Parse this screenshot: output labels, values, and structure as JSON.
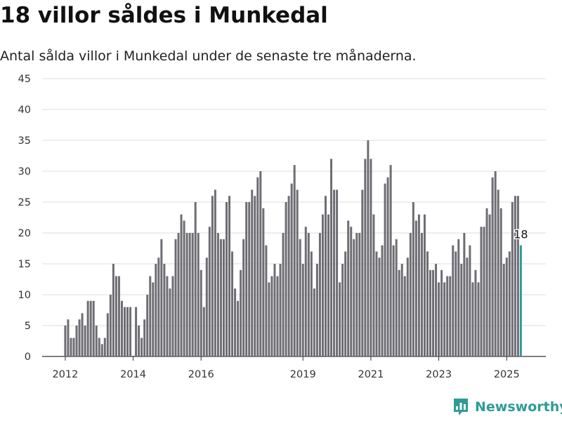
{
  "chart_data": {
    "type": "bar",
    "title": "18 villor såldes i Munkedal",
    "subtitle": "Antal sålda villor i Munkedal under de senaste tre månaderna.",
    "ylim": [
      0,
      45
    ],
    "yticks": [
      0,
      5,
      10,
      15,
      20,
      25,
      30,
      35,
      40,
      45
    ],
    "xticks": [
      "2012",
      "2014",
      "2016",
      "2019",
      "2021",
      "2023",
      "2025"
    ],
    "grid": true,
    "bar_color": "#6e6d73",
    "highlight_color": "#2e9c96",
    "highlight_label": "18",
    "series": [
      {
        "values": [
          5,
          6,
          3,
          3,
          5,
          6,
          7,
          5,
          9,
          9,
          9,
          5,
          3,
          2,
          3,
          7,
          10,
          15,
          13,
          13,
          9,
          8,
          8,
          8,
          0,
          8,
          5,
          3,
          6,
          10,
          13,
          12,
          15,
          16,
          19,
          15,
          13,
          11,
          13,
          19,
          20,
          23,
          22,
          20,
          20,
          20,
          25,
          20,
          14,
          8,
          16,
          21,
          26,
          27,
          20,
          19,
          19,
          25,
          26,
          17,
          11,
          9,
          14,
          19,
          25,
          25,
          27,
          26,
          29,
          30,
          24,
          18,
          12,
          13,
          15,
          13,
          15,
          20,
          25,
          26,
          28,
          31,
          27,
          19,
          15,
          21,
          20,
          17,
          11,
          15,
          20,
          23,
          26,
          23,
          32,
          27,
          27,
          12,
          15,
          17,
          22,
          21,
          19,
          20,
          20,
          27,
          32,
          35,
          32,
          23,
          17,
          16,
          18,
          28,
          29,
          31,
          18,
          19,
          14,
          15,
          13,
          16,
          20,
          25,
          22,
          23,
          20,
          23,
          17,
          14,
          14,
          15,
          12,
          14,
          12,
          13,
          13,
          18,
          17,
          19,
          15,
          20,
          16,
          18,
          12,
          14,
          12,
          21,
          21,
          24,
          23,
          29,
          30,
          27,
          24,
          15,
          16,
          17,
          25,
          26,
          26,
          18
        ]
      }
    ]
  },
  "brand": {
    "name": "Newsworthy"
  }
}
